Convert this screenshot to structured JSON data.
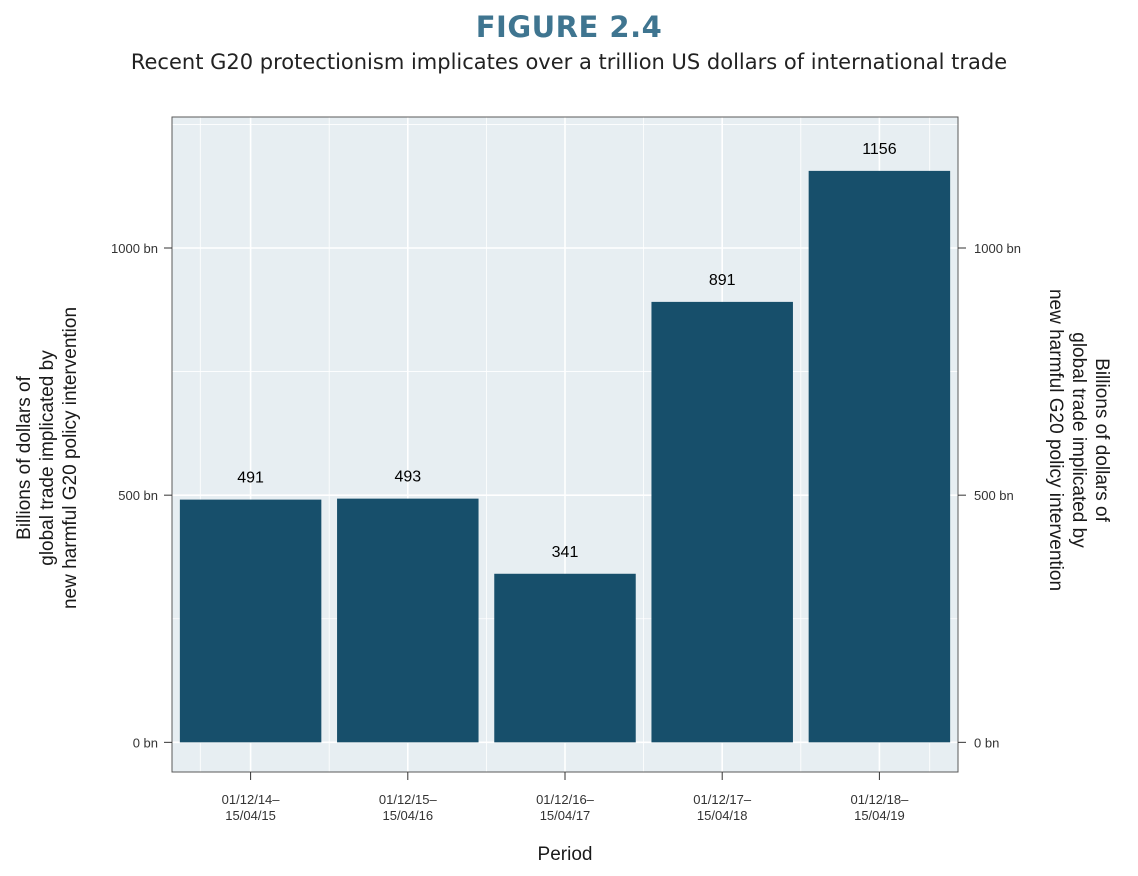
{
  "figure": {
    "label": "FIGURE 2.4",
    "subtitle": "Recent G20 protectionism implicates over a trillion US dollars of international trade"
  },
  "chart_data": {
    "type": "bar",
    "categories": [
      [
        "01/12/14–",
        "15/04/15"
      ],
      [
        "01/12/15–",
        "15/04/16"
      ],
      [
        "01/12/16–",
        "15/04/17"
      ],
      [
        "01/12/17–",
        "15/04/18"
      ],
      [
        "01/12/18–",
        "15/04/19"
      ]
    ],
    "values": [
      491,
      493,
      341,
      891,
      1156
    ],
    "data_labels": [
      "491",
      "493",
      "341",
      "891",
      "1156"
    ],
    "xlabel": "Period",
    "ylabel": [
      "Billions of dollars of",
      "global trade implicated by",
      "new harmful G20 policy intervention"
    ],
    "ylabel_right": [
      "Billions of dollars of",
      "global trade implicated by",
      "new harmful G20 policy intervention"
    ],
    "ylim": [
      -60,
      1265
    ],
    "yticks": [
      0,
      500,
      1000
    ],
    "ytick_labels": [
      "0 bn",
      "500 bn",
      "1000 bn"
    ],
    "grid": true,
    "colors": {
      "bar": "#174f6b",
      "panel": "#e7eef2",
      "grid": "#ffffff",
      "title": "#3f7590"
    }
  }
}
